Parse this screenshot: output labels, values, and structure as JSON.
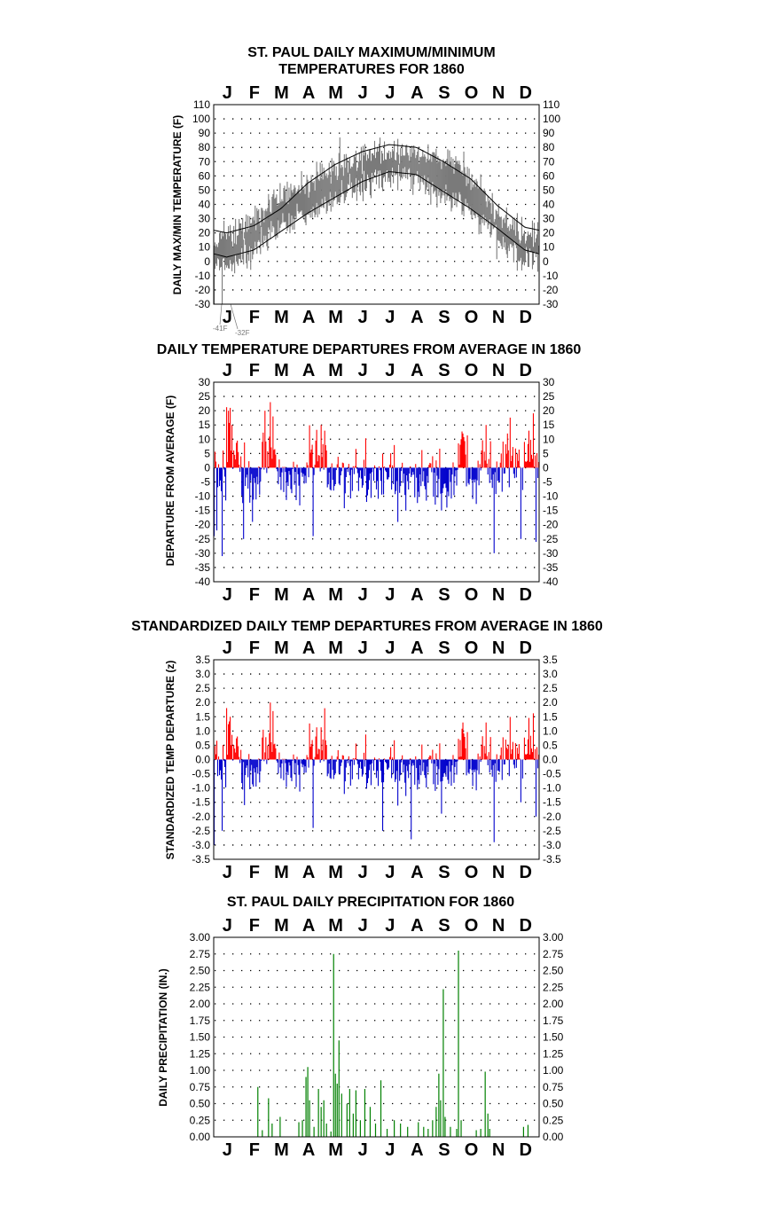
{
  "months": [
    "J",
    "F",
    "M",
    "A",
    "M",
    "J",
    "J",
    "A",
    "S",
    "O",
    "N",
    "D"
  ],
  "colors": {
    "gray": "#7a7a7a",
    "red": "#ff0000",
    "blue": "#0000cc",
    "green": "#008000",
    "black": "#000000"
  },
  "chart_data": [
    {
      "type": "line",
      "title_line1": "ST. PAUL DAILY MAXIMUM/MINIMUM",
      "title_line2": "TEMPERATURES FOR 1860",
      "ylabel": "DAILY MAX/MIN TEMPERATURE (F)",
      "ylim": [
        -30,
        110
      ],
      "ytick_step": 10,
      "grid": true,
      "annotations": [
        "-41F",
        "-32F"
      ],
      "normal_high_monthly": [
        20,
        25,
        37,
        55,
        68,
        77,
        82,
        80,
        70,
        58,
        39,
        24
      ],
      "normal_low_monthly": [
        3,
        8,
        21,
        34,
        45,
        56,
        63,
        61,
        49,
        37,
        23,
        8
      ],
      "observed_monthly_avg_high": [
        18,
        27,
        48,
        55,
        66,
        73,
        78,
        77,
        70,
        62,
        35,
        18
      ],
      "observed_monthly_avg_low": [
        -3,
        6,
        25,
        33,
        44,
        54,
        61,
        58,
        46,
        38,
        15,
        0
      ],
      "observed_extremes": {
        "min": -41,
        "second_min": -32,
        "max": 87
      }
    },
    {
      "type": "bar",
      "title": "DAILY TEMPERATURE DEPARTURES FROM AVERAGE IN 1860",
      "ylabel": "DEPARTURE FROM AVERAGE (F)",
      "ylim": [
        -40,
        30
      ],
      "ytick_step": 5,
      "grid": true,
      "spikes": [
        {
          "day": 1,
          "value": -24
        },
        {
          "day": 4,
          "value": -22
        },
        {
          "day": 10,
          "value": -31
        },
        {
          "day": 17,
          "value": 20
        },
        {
          "day": 19,
          "value": 21
        },
        {
          "day": 21,
          "value": 15
        },
        {
          "day": 34,
          "value": -25
        },
        {
          "day": 44,
          "value": -19
        },
        {
          "day": 58,
          "value": 20
        },
        {
          "day": 64,
          "value": 23
        },
        {
          "day": 67,
          "value": 18
        },
        {
          "day": 112,
          "value": -24
        },
        {
          "day": 121,
          "value": 15
        },
        {
          "day": 125,
          "value": 13
        },
        {
          "day": 256,
          "value": -15
        },
        {
          "day": 262,
          "value": -14
        },
        {
          "day": 278,
          "value": 10
        },
        {
          "day": 280,
          "value": 12
        },
        {
          "day": 306,
          "value": 15
        },
        {
          "day": 315,
          "value": -30
        },
        {
          "day": 330,
          "value": 12
        },
        {
          "day": 345,
          "value": -25
        },
        {
          "day": 354,
          "value": 13
        },
        {
          "day": 362,
          "value": -26
        }
      ]
    },
    {
      "type": "bar",
      "title": "STANDARDIZED DAILY TEMP DEPARTURES FROM AVERAGE IN 1860",
      "ylabel": "STANDARDIZED TEMP DEPARTURE (z)",
      "ylim": [
        -3.5,
        3.5
      ],
      "ytick_step": 0.5,
      "grid": true,
      "spikes": [
        {
          "day": 1,
          "value": -3.0
        },
        {
          "day": 10,
          "value": -2.5
        },
        {
          "day": 19,
          "value": 1.5
        },
        {
          "day": 35,
          "value": -1.6
        },
        {
          "day": 64,
          "value": 2.0
        },
        {
          "day": 67,
          "value": 1.7
        },
        {
          "day": 112,
          "value": -2.4
        },
        {
          "day": 125,
          "value": 1.8
        },
        {
          "day": 190,
          "value": -2.5
        },
        {
          "day": 222,
          "value": -2.8
        },
        {
          "day": 256,
          "value": -1.9
        },
        {
          "day": 280,
          "value": 1.3
        },
        {
          "day": 306,
          "value": 1.3
        },
        {
          "day": 315,
          "value": -2.9
        },
        {
          "day": 345,
          "value": -1.5
        },
        {
          "day": 362,
          "value": -2.0
        }
      ]
    },
    {
      "type": "bar",
      "title": "ST. PAUL DAILY PRECIPITATION FOR 1860",
      "ylabel": "DAILY PRECIPITATION (IN.)",
      "ylim": [
        0,
        3
      ],
      "ytick_step": 0.25,
      "grid": true,
      "values": [
        {
          "day": 50,
          "value": 0.75
        },
        {
          "day": 55,
          "value": 0.1
        },
        {
          "day": 62,
          "value": 0.58
        },
        {
          "day": 66,
          "value": 0.2
        },
        {
          "day": 75,
          "value": 0.3
        },
        {
          "day": 96,
          "value": 0.22
        },
        {
          "day": 100,
          "value": 0.25
        },
        {
          "day": 104,
          "value": 0.9
        },
        {
          "day": 106,
          "value": 1.05
        },
        {
          "day": 108,
          "value": 0.55
        },
        {
          "day": 113,
          "value": 0.15
        },
        {
          "day": 118,
          "value": 0.72
        },
        {
          "day": 121,
          "value": 0.45
        },
        {
          "day": 124,
          "value": 0.55
        },
        {
          "day": 127,
          "value": 0.2
        },
        {
          "day": 132,
          "value": 0.08
        },
        {
          "day": 135,
          "value": 2.75
        },
        {
          "day": 137,
          "value": 0.95
        },
        {
          "day": 139,
          "value": 0.8
        },
        {
          "day": 141,
          "value": 1.45
        },
        {
          "day": 144,
          "value": 0.65
        },
        {
          "day": 150,
          "value": 0.5
        },
        {
          "day": 153,
          "value": 0.72
        },
        {
          "day": 157,
          "value": 0.35
        },
        {
          "day": 160,
          "value": 0.7
        },
        {
          "day": 165,
          "value": 0.25
        },
        {
          "day": 170,
          "value": 0.72
        },
        {
          "day": 176,
          "value": 0.45
        },
        {
          "day": 182,
          "value": 0.2
        },
        {
          "day": 188,
          "value": 0.85
        },
        {
          "day": 195,
          "value": 0.12
        },
        {
          "day": 203,
          "value": 0.25
        },
        {
          "day": 210,
          "value": 0.2
        },
        {
          "day": 218,
          "value": 0.15
        },
        {
          "day": 230,
          "value": 0.22
        },
        {
          "day": 236,
          "value": 0.15
        },
        {
          "day": 241,
          "value": 0.12
        },
        {
          "day": 246,
          "value": 0.25
        },
        {
          "day": 250,
          "value": 0.45
        },
        {
          "day": 253,
          "value": 0.95
        },
        {
          "day": 255,
          "value": 0.55
        },
        {
          "day": 258,
          "value": 2.22
        },
        {
          "day": 260,
          "value": 0.3
        },
        {
          "day": 266,
          "value": 0.15
        },
        {
          "day": 273,
          "value": 0.12
        },
        {
          "day": 275,
          "value": 2.8
        },
        {
          "day": 278,
          "value": 0.25
        },
        {
          "day": 295,
          "value": 0.1
        },
        {
          "day": 300,
          "value": 0.12
        },
        {
          "day": 305,
          "value": 0.98
        },
        {
          "day": 308,
          "value": 0.35
        },
        {
          "day": 310,
          "value": 0.12
        },
        {
          "day": 348,
          "value": 0.15
        },
        {
          "day": 353,
          "value": 0.18
        }
      ]
    }
  ]
}
